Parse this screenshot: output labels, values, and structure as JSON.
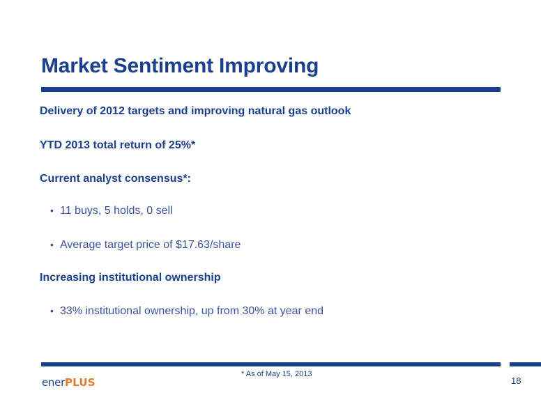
{
  "slide": {
    "title": "Market Sentiment Improving",
    "items": [
      {
        "type": "heading",
        "text": "Delivery of 2012 targets and improving natural gas outlook"
      },
      {
        "type": "heading",
        "text": "YTD 2013 total return of 25%*"
      },
      {
        "type": "heading",
        "text": "Current analyst consensus*:"
      },
      {
        "type": "bullet",
        "text": "11 buys, 5 holds, 0 sell"
      },
      {
        "type": "bullet",
        "text": "Average target price of $17.63/share"
      },
      {
        "type": "heading",
        "text": "Increasing institutional ownership"
      },
      {
        "type": "bullet",
        "text": "33% institutional ownership, up from 30% at year end"
      }
    ],
    "bullet_glyph": "•",
    "footnote": "* As of May 15, 2013",
    "page_number": "18"
  },
  "logo": {
    "part1": "ener",
    "part2": "PLUS"
  },
  "colors": {
    "primary": "#1b3f8f",
    "body_text": "#3d52a0",
    "logo_accent": "#e07a2a"
  }
}
